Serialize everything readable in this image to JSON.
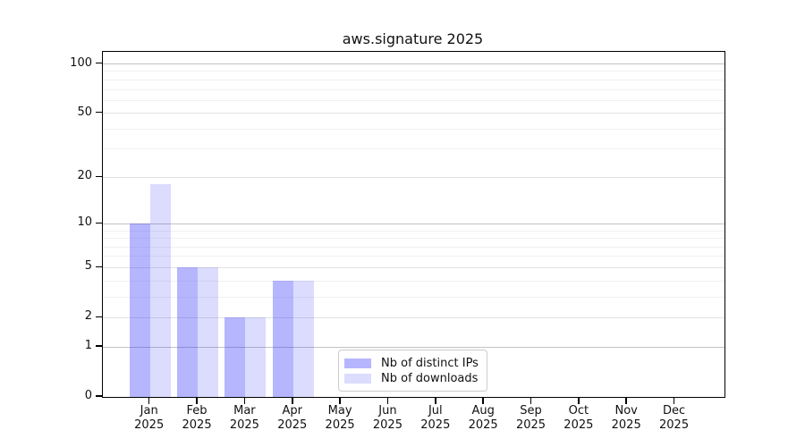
{
  "title": "aws.signature 2025",
  "chart_data": {
    "type": "bar",
    "title": "aws.signature 2025",
    "categories": [
      "Jan",
      "Feb",
      "Mar",
      "Apr",
      "May",
      "Jun",
      "Jul",
      "Aug",
      "Sep",
      "Oct",
      "Nov",
      "Dec"
    ],
    "x_year_label": "2025",
    "series": [
      {
        "name": "Nb of distinct IPs",
        "color": "rgba(40,40,255,0.34)",
        "values": [
          10,
          5,
          2,
          4,
          0,
          0,
          0,
          0,
          0,
          0,
          0,
          0
        ]
      },
      {
        "name": "Nb of downloads",
        "color": "rgba(40,40,255,0.16)",
        "values": [
          18,
          5,
          2,
          4,
          0,
          0,
          0,
          0,
          0,
          0,
          0,
          0
        ]
      }
    ],
    "xlabel": "",
    "ylabel": "",
    "y_scale": "log1p",
    "ylim": [
      0,
      105
    ],
    "y_ticks": [
      0,
      1,
      2,
      5,
      10,
      20,
      50,
      100
    ],
    "y_major_emphasis_ticks": [
      1,
      10,
      100
    ],
    "y_minor_gridlines": [
      3,
      4,
      6,
      7,
      8,
      9,
      30,
      40,
      60,
      70,
      80,
      90
    ],
    "grid": true,
    "legend_position": "bottom-center",
    "colors": {
      "grid_major": "#c3c3c3",
      "grid_medium": "#e2e2e2",
      "grid_minor": "#f1f1f1",
      "axis": "#000000",
      "text": "#111111"
    }
  }
}
